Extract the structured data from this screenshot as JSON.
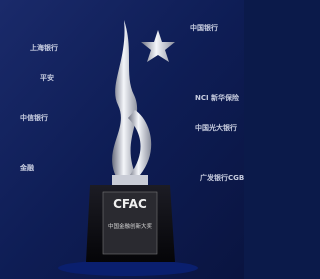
{
  "scene": {
    "plaque": {
      "logo": "CFAC",
      "award": "中国金融创新大奖"
    },
    "backdrop_logos": [
      "上海银行",
      "中国银行",
      "NCI 新华保险",
      "中信银行",
      "广发银行CGB",
      "金融",
      "平安",
      "中国光大银行"
    ]
  }
}
